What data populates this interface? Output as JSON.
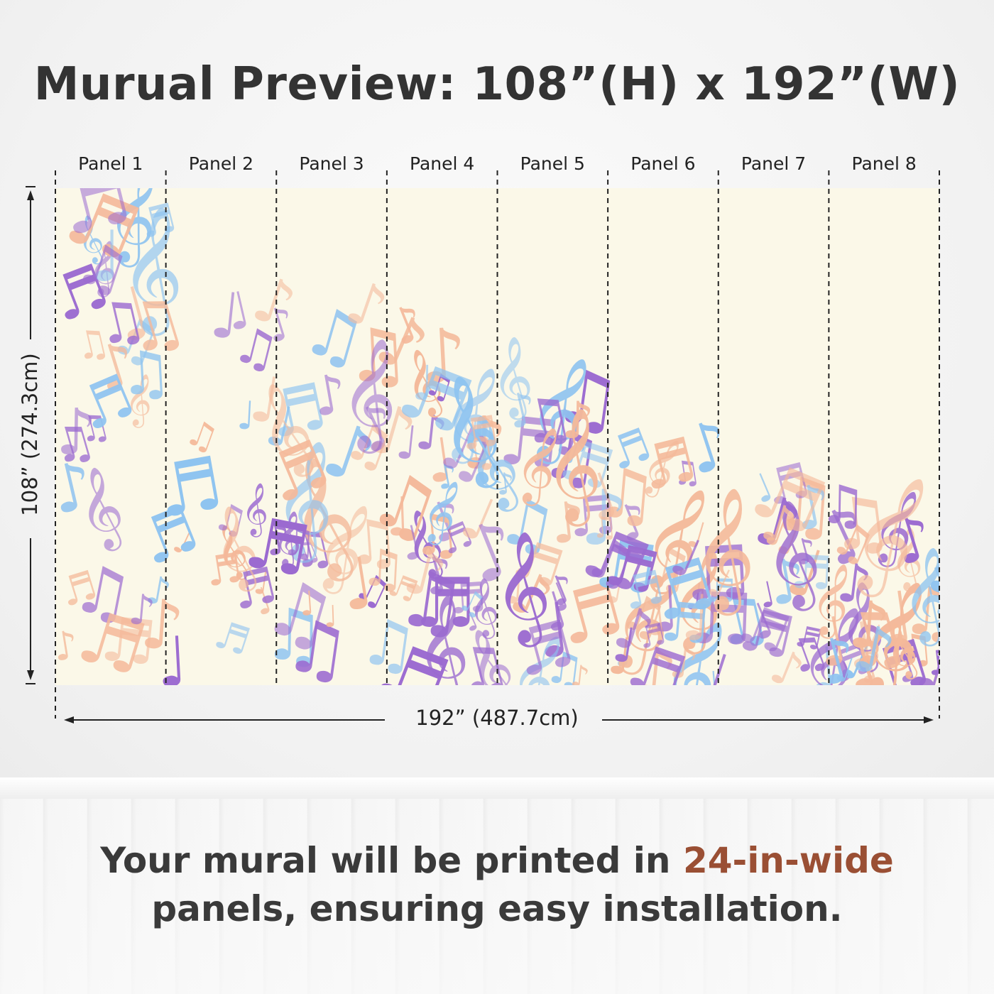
{
  "title": "Murual Preview: 108”(H) x 192”(W)",
  "panels": [
    {
      "label": "Panel 1"
    },
    {
      "label": "Panel 2"
    },
    {
      "label": "Panel 3"
    },
    {
      "label": "Panel 4"
    },
    {
      "label": "Panel 5"
    },
    {
      "label": "Panel 6"
    },
    {
      "label": "Panel 7"
    },
    {
      "label": "Panel 8"
    }
  ],
  "height_dimension": "108” (274.3cm)",
  "width_dimension": "192” (487.7cm)",
  "caption": {
    "part1": "Your mural will be printed in ",
    "highlight": "24-in-wide",
    "part2": "panels, ensuring easy installation."
  },
  "colors": {
    "mural_bg": "#fbf8e8",
    "note_purple": "#9b6ad0",
    "note_blue": "#8ec3f0",
    "note_orange": "#f4b99a",
    "highlight": "#9a4f34"
  },
  "icons": [
    "treble-clef-icon",
    "eighth-note-icon",
    "beamed-notes-icon"
  ]
}
